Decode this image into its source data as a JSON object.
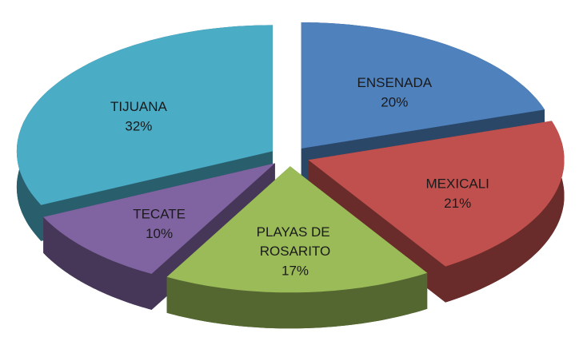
{
  "chart_data": {
    "type": "pie3d",
    "categories": [
      "ENSENADA",
      "MEXICALI",
      "PLAYAS DE ROSARITO",
      "TECATE",
      "TIJUANA"
    ],
    "values": [
      20,
      21,
      17,
      10,
      32
    ],
    "value_labels": [
      "20%",
      "21%",
      "17%",
      "10%",
      "32%"
    ],
    "colors": [
      "#4f81bd",
      "#c0504d",
      "#9bbb59",
      "#8064a2",
      "#4bacc6"
    ]
  }
}
